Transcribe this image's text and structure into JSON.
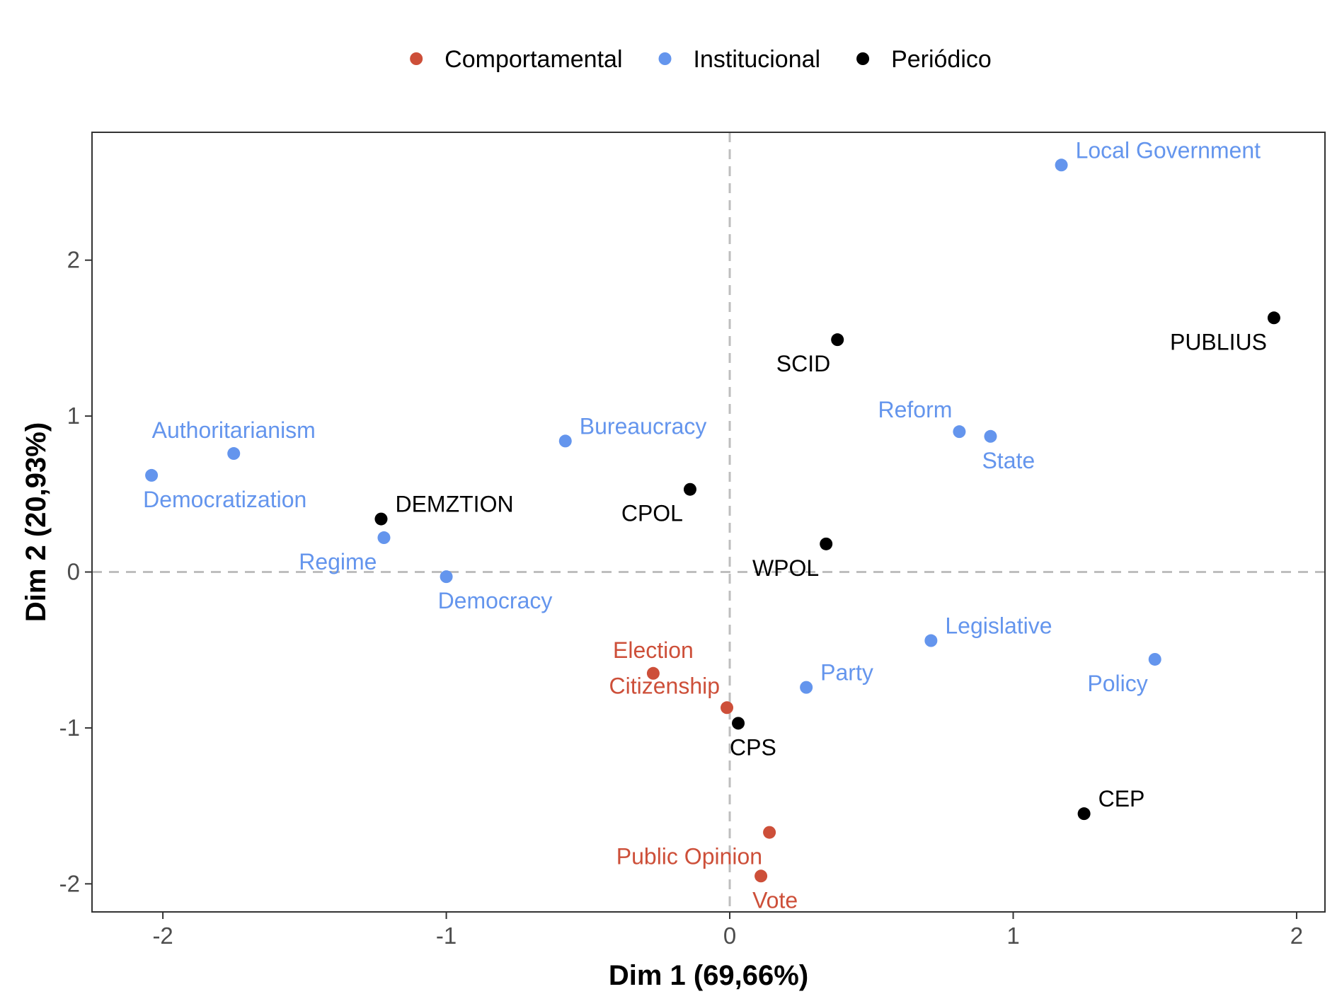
{
  "chart_data": {
    "type": "scatter",
    "xlabel": "Dim 1 (69,66%)",
    "ylabel": "Dim 2 (20,93%)",
    "xlim": [
      -2.25,
      2.1
    ],
    "ylim": [
      -2.18,
      2.82
    ],
    "x_ticks": [
      -2,
      -1,
      0,
      1,
      2
    ],
    "y_ticks": [
      -2,
      -1,
      0,
      1,
      2
    ],
    "x_tick_labels": [
      "-2",
      "-1",
      "0",
      "1",
      "2"
    ],
    "y_tick_labels": [
      "-2",
      "-1",
      "0",
      "1",
      "2"
    ],
    "reference_lines": {
      "x": 0,
      "y": 0,
      "style": "dashed",
      "color": "#BEBEBE"
    },
    "grid": false,
    "legend_position": "top",
    "series": [
      {
        "name": "Comportamental",
        "color": "#CD4F39",
        "points": [
          {
            "label": "Election",
            "x": -0.27,
            "y": -0.65,
            "label_pos": "above"
          },
          {
            "label": "Citizenship",
            "x": -0.01,
            "y": -0.87,
            "label_pos": "above-left"
          },
          {
            "label": "Public Opinion",
            "x": 0.14,
            "y": -1.67,
            "label_pos": "below-left"
          },
          {
            "label": "Vote",
            "x": 0.11,
            "y": -1.95,
            "label_pos": "below-right"
          }
        ]
      },
      {
        "name": "Institucional",
        "color": "#6495ED",
        "points": [
          {
            "label": "Local Government",
            "x": 1.17,
            "y": 2.61,
            "label_pos": "above-right"
          },
          {
            "label": "Authoritarianism",
            "x": -1.75,
            "y": 0.76,
            "label_pos": "above"
          },
          {
            "label": "Democratization",
            "x": -2.04,
            "y": 0.62,
            "label_pos": "below-right"
          },
          {
            "label": "Bureaucracy",
            "x": -0.58,
            "y": 0.84,
            "label_pos": "above-right"
          },
          {
            "label": "Reform",
            "x": 0.81,
            "y": 0.9,
            "label_pos": "above-left"
          },
          {
            "label": "State",
            "x": 0.92,
            "y": 0.87,
            "label_pos": "below-right"
          },
          {
            "label": "Regime",
            "x": -1.22,
            "y": 0.22,
            "label_pos": "below-left"
          },
          {
            "label": "Democracy",
            "x": -1.0,
            "y": -0.03,
            "label_pos": "below-right"
          },
          {
            "label": "Legislative",
            "x": 0.71,
            "y": -0.44,
            "label_pos": "above-right"
          },
          {
            "label": "Party",
            "x": 0.27,
            "y": -0.74,
            "label_pos": "above-right"
          },
          {
            "label": "Policy",
            "x": 1.5,
            "y": -0.56,
            "label_pos": "below-left"
          }
        ]
      },
      {
        "name": "Periódico",
        "color": "#000000",
        "points": [
          {
            "label": "PUBLIUS",
            "x": 1.92,
            "y": 1.63,
            "label_pos": "below-left"
          },
          {
            "label": "SCID",
            "x": 0.38,
            "y": 1.49,
            "label_pos": "below-left"
          },
          {
            "label": "DEMZTION",
            "x": -1.23,
            "y": 0.34,
            "label_pos": "above-right"
          },
          {
            "label": "CPOL",
            "x": -0.14,
            "y": 0.53,
            "label_pos": "below-left"
          },
          {
            "label": "WPOL",
            "x": 0.34,
            "y": 0.18,
            "label_pos": "below-left"
          },
          {
            "label": "CPS",
            "x": 0.03,
            "y": -0.97,
            "label_pos": "below-right"
          },
          {
            "label": "CEP",
            "x": 1.25,
            "y": -1.55,
            "label_pos": "above-right"
          }
        ]
      }
    ]
  }
}
